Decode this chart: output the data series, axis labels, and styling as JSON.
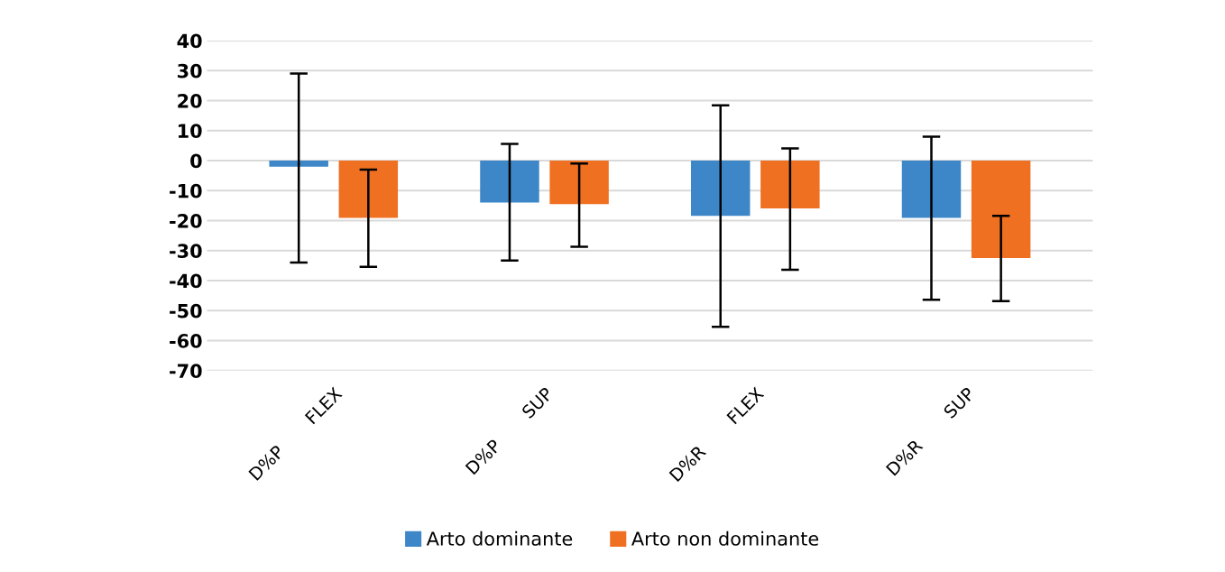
{
  "chart_data": {
    "type": "bar",
    "categories": [
      "D%P       FLEX",
      "D%P       SUP",
      "D%R       FLEX",
      "D%R       SUP"
    ],
    "series": [
      {
        "name": "Arto dominante",
        "color": "#3d87c9",
        "values": [
          -2,
          -14,
          -18.4,
          -19.1
        ],
        "errors": [
          [
            -34,
            29
          ],
          [
            -33.3,
            5.6
          ],
          [
            -55.4,
            18.4
          ],
          [
            -46.4,
            8
          ]
        ]
      },
      {
        "name": "Arto non dominante",
        "color": "#f07022",
        "values": [
          -19.1,
          -14.5,
          -15.9,
          -32.5
        ],
        "errors": [
          [
            -35.4,
            -3
          ],
          [
            -28.7,
            -1
          ],
          [
            -36.4,
            4.1
          ],
          [
            -46.8,
            -18.4
          ]
        ]
      }
    ],
    "ylim": [
      -70,
      40
    ],
    "yticks": [
      -70,
      -60,
      -50,
      -40,
      -30,
      -20,
      -10,
      0,
      10,
      20,
      30,
      40
    ],
    "grid": "y",
    "legend": "bottom"
  }
}
